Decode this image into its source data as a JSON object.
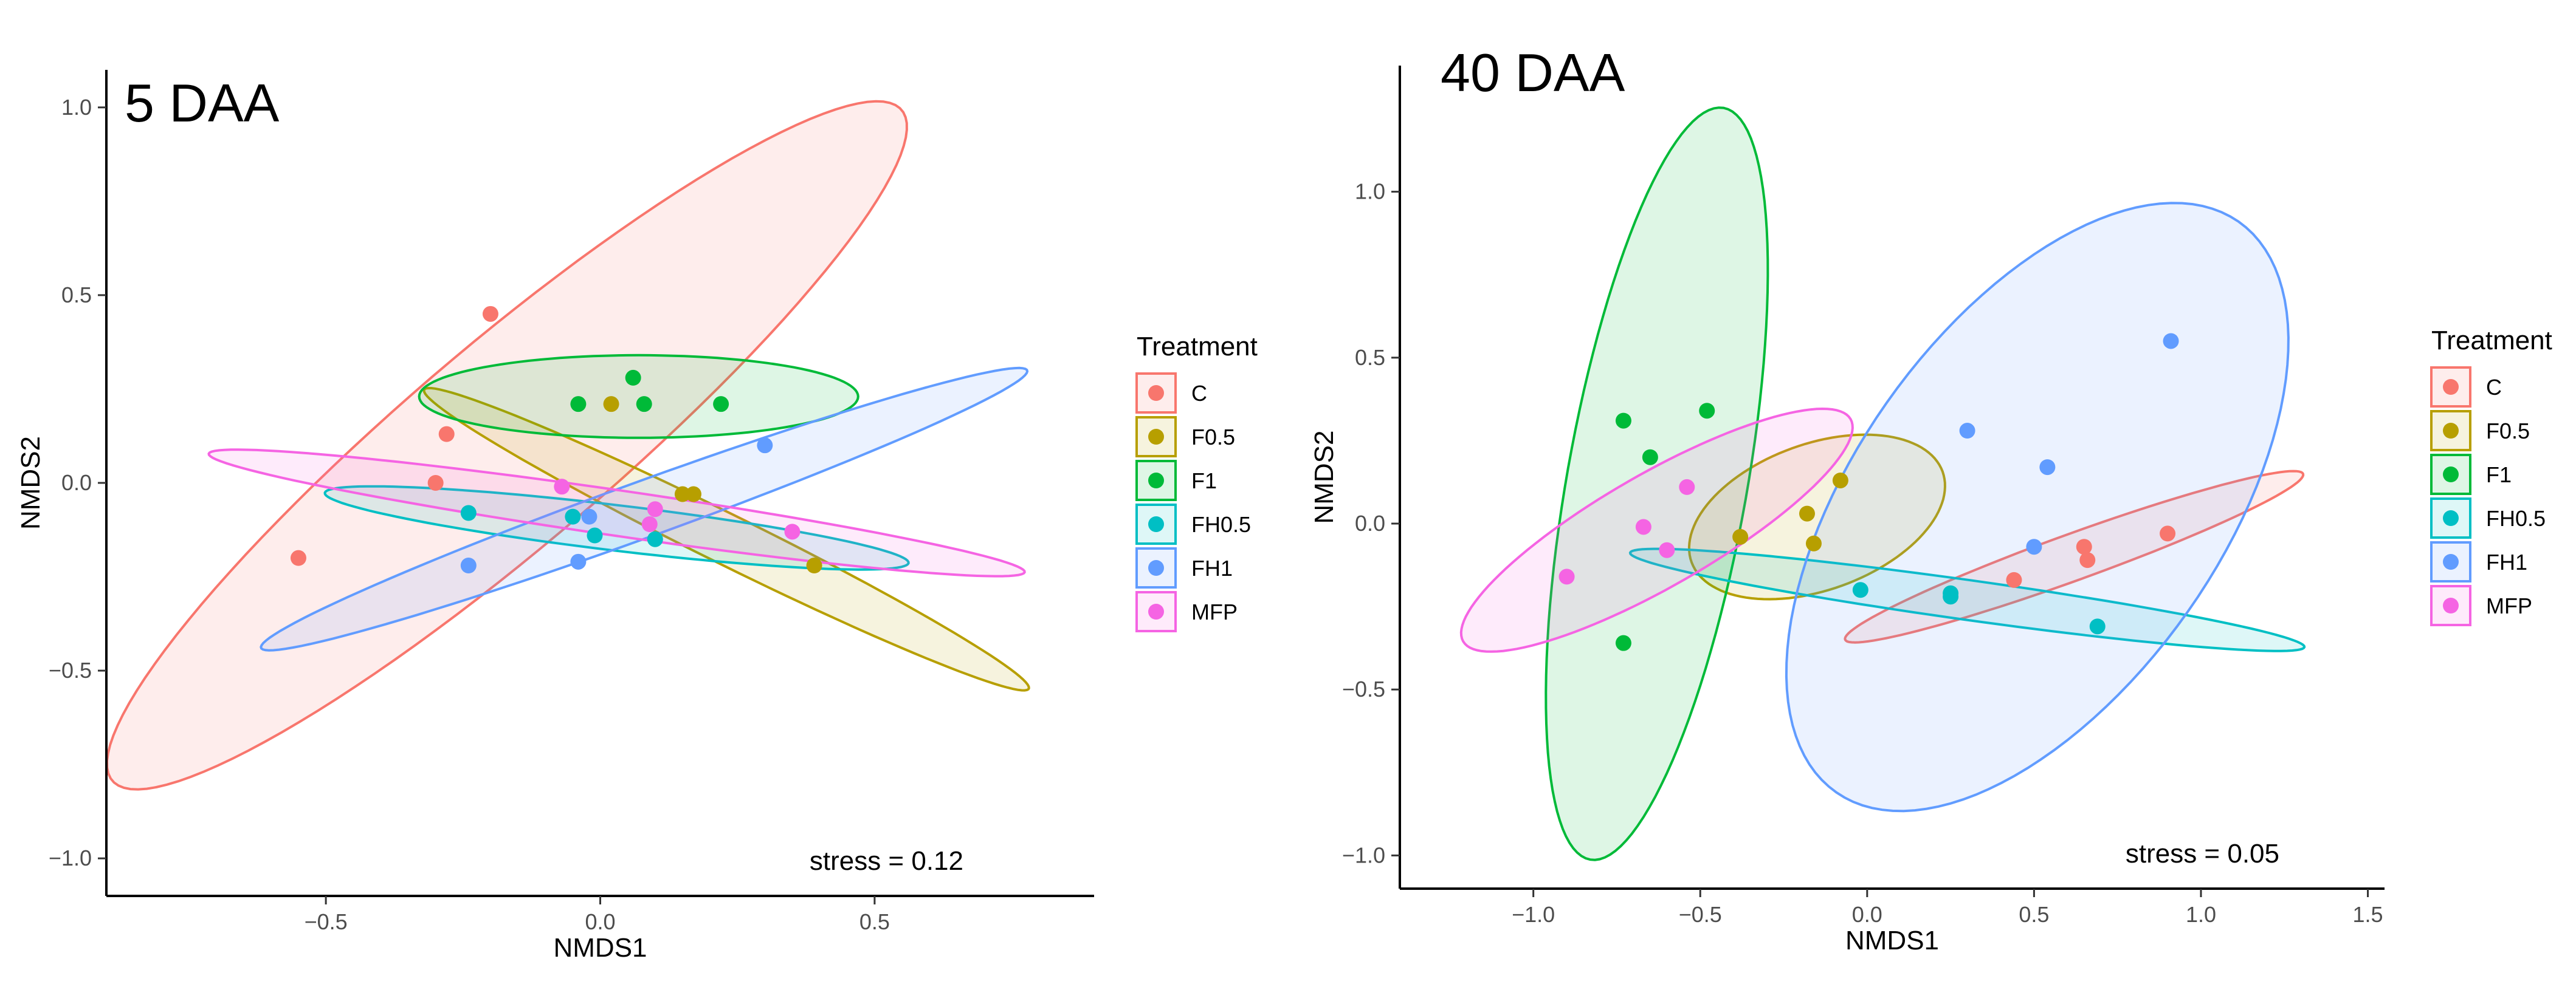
{
  "chart_data": [
    {
      "type": "scatter",
      "panel_label": "5 DAA",
      "xlabel": "NMDS1",
      "ylabel": "NMDS2",
      "xlim": [
        -0.9,
        0.9
      ],
      "ylim": [
        -1.1,
        1.1
      ],
      "xticks": [
        -0.5,
        0.0,
        0.5
      ],
      "xtick_labels": [
        "−0.5",
        "0.0",
        "0.5"
      ],
      "yticks": [
        -1.0,
        -0.5,
        0.0,
        0.5,
        1.0
      ],
      "ytick_labels": [
        "−1.0",
        "−0.5",
        "0.0",
        "0.5",
        "1.0"
      ],
      "annotation": "stress = 0.12",
      "grid": false,
      "legend_title": "Treatment",
      "legend_position": "right",
      "series": [
        {
          "name": "C",
          "color": "#F8766D",
          "points": [
            [
              -0.2,
              0.45
            ],
            [
              -0.28,
              0.13
            ],
            [
              -0.3,
              0.0
            ],
            [
              -0.55,
              -0.2
            ]
          ],
          "ellipse": {
            "cx": -0.17,
            "cy": 0.1,
            "rx": 1.15,
            "ry": 0.22,
            "angle_deg": 52
          }
        },
        {
          "name": "F0.5",
          "color": "#B79F00",
          "points": [
            [
              0.02,
              0.21
            ],
            [
              0.15,
              -0.03
            ],
            [
              0.17,
              -0.03
            ],
            [
              0.39,
              -0.22
            ]
          ],
          "ellipse": {
            "cx": 0.23,
            "cy": -0.15,
            "rx": 0.68,
            "ry": 0.06,
            "angle_deg": -36
          }
        },
        {
          "name": "F1",
          "color": "#00BA38",
          "points": [
            [
              -0.04,
              0.21
            ],
            [
              0.06,
              0.28
            ],
            [
              0.08,
              0.21
            ],
            [
              0.22,
              0.21
            ]
          ],
          "ellipse": {
            "cx": 0.07,
            "cy": 0.23,
            "rx": 0.4,
            "ry": 0.11,
            "angle_deg": 0
          }
        },
        {
          "name": "FH0.5",
          "color": "#00BFC4",
          "points": [
            [
              -0.24,
              -0.08
            ],
            [
              -0.05,
              -0.09
            ],
            [
              -0.01,
              -0.14
            ],
            [
              0.1,
              -0.15
            ]
          ],
          "ellipse": {
            "cx": 0.03,
            "cy": -0.12,
            "rx": 0.54,
            "ry": 0.06,
            "angle_deg": -10
          }
        },
        {
          "name": "FH1",
          "color": "#619CFF",
          "points": [
            [
              -0.24,
              -0.22
            ],
            [
              -0.04,
              -0.21
            ],
            [
              -0.02,
              -0.09
            ],
            [
              0.3,
              0.1
            ]
          ],
          "ellipse": {
            "cx": 0.08,
            "cy": -0.07,
            "rx": 0.79,
            "ry": 0.07,
            "angle_deg": 28
          }
        },
        {
          "name": "MFP",
          "color": "#F564E3",
          "points": [
            [
              -0.07,
              -0.01
            ],
            [
              0.09,
              -0.11
            ],
            [
              0.1,
              -0.07
            ],
            [
              0.35,
              -0.13
            ]
          ],
          "ellipse": {
            "cx": 0.03,
            "cy": -0.08,
            "rx": 0.76,
            "ry": 0.06,
            "angle_deg": -12
          }
        }
      ]
    },
    {
      "type": "scatter",
      "panel_label": "40 DAA",
      "xlabel": "NMDS1",
      "ylabel": "NMDS2",
      "xlim": [
        -1.4,
        1.55
      ],
      "ylim": [
        -1.1,
        1.38
      ],
      "xticks": [
        -1.0,
        -0.5,
        0.0,
        0.5,
        1.0,
        1.5
      ],
      "xtick_labels": [
        "−1.0",
        "−0.5",
        "0.0",
        "0.5",
        "1.0",
        "1.5"
      ],
      "yticks": [
        -1.0,
        -0.5,
        0.0,
        0.5,
        1.0
      ],
      "ytick_labels": [
        "−1.0",
        "−0.5",
        "0.0",
        "0.5",
        "1.0"
      ],
      "annotation": "stress = 0.05",
      "grid": false,
      "legend_title": "Treatment",
      "legend_position": "right",
      "series": [
        {
          "name": "C",
          "color": "#F8766D",
          "points": [
            [
              0.44,
              -0.17
            ],
            [
              0.65,
              -0.07
            ],
            [
              0.66,
              -0.11
            ],
            [
              0.9,
              -0.03
            ]
          ],
          "ellipse": {
            "cx": 0.62,
            "cy": -0.1,
            "rx": 0.73,
            "ry": 0.07,
            "angle_deg": 20
          }
        },
        {
          "name": "F0.5",
          "color": "#B79F00",
          "points": [
            [
              -0.38,
              -0.04
            ],
            [
              -0.18,
              0.03
            ],
            [
              -0.16,
              -0.06
            ],
            [
              -0.08,
              0.13
            ]
          ],
          "ellipse": {
            "cx": -0.15,
            "cy": 0.02,
            "rx": 0.4,
            "ry": 0.22,
            "angle_deg": 20
          }
        },
        {
          "name": "F1",
          "color": "#00BA38",
          "points": [
            [
              -0.73,
              0.31
            ],
            [
              -0.65,
              0.2
            ],
            [
              -0.48,
              0.34
            ],
            [
              -0.73,
              -0.36
            ]
          ],
          "ellipse": {
            "cx": -0.63,
            "cy": 0.12,
            "rx": 1.15,
            "ry": 0.27,
            "angle_deg": 80
          }
        },
        {
          "name": "FH0.5",
          "color": "#00BFC4",
          "points": [
            [
              -0.02,
              -0.2
            ],
            [
              0.25,
              -0.21
            ],
            [
              0.25,
              -0.22
            ],
            [
              0.69,
              -0.31
            ]
          ],
          "ellipse": {
            "cx": 0.3,
            "cy": -0.23,
            "rx": 1.02,
            "ry": 0.06,
            "angle_deg": -8
          }
        },
        {
          "name": "FH1",
          "color": "#619CFF",
          "points": [
            [
              0.3,
              0.28
            ],
            [
              0.5,
              -0.07
            ],
            [
              0.54,
              0.17
            ],
            [
              0.91,
              0.55
            ]
          ],
          "ellipse": {
            "cx": 0.51,
            "cy": 0.05,
            "rx": 1.05,
            "ry": 0.55,
            "angle_deg": 55
          }
        },
        {
          "name": "MFP",
          "color": "#F564E3",
          "points": [
            [
              -0.9,
              -0.16
            ],
            [
              -0.67,
              -0.01
            ],
            [
              -0.6,
              -0.08
            ],
            [
              -0.54,
              0.11
            ]
          ],
          "ellipse": {
            "cx": -0.63,
            "cy": -0.02,
            "rx": 0.67,
            "ry": 0.17,
            "angle_deg": 30
          }
        }
      ]
    }
  ]
}
